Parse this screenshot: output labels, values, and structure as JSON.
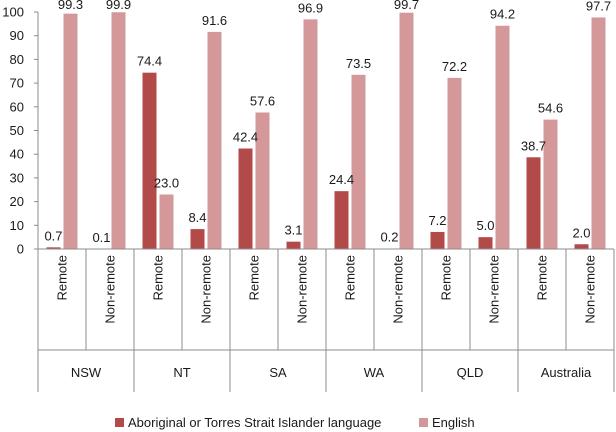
{
  "chart_data": {
    "type": "bar",
    "title": "",
    "xlabel": "",
    "ylabel": "",
    "ylim": [
      0,
      100
    ],
    "yticks": [
      0,
      10,
      20,
      30,
      40,
      50,
      60,
      70,
      80,
      90,
      100
    ],
    "grid": false,
    "legend_position": "bottom",
    "groups": [
      "NSW",
      "NT",
      "SA",
      "WA",
      "QLD",
      "Australia"
    ],
    "subcategories": [
      "Remote",
      "Non-remote"
    ],
    "series": [
      {
        "name": "Aboriginal or Torres Strait Islander language",
        "color": "#b24a4a",
        "values": [
          0.7,
          0.1,
          74.4,
          8.4,
          42.4,
          3.1,
          24.4,
          0.2,
          7.2,
          5.0,
          38.7,
          2.0
        ],
        "labels": [
          "0.7",
          "0.1",
          "74.4",
          "8.4",
          "42.4",
          "3.1",
          "24.4",
          "0.2",
          "7.2",
          "5.0",
          "38.7",
          "2.0"
        ]
      },
      {
        "name": "English",
        "color": "#d4979a",
        "values": [
          99.3,
          99.9,
          23.0,
          91.6,
          57.6,
          96.9,
          73.5,
          99.7,
          72.2,
          94.2,
          54.6,
          97.7
        ],
        "labels": [
          "99.3",
          "99.9",
          "23.0",
          "91.6",
          "57.6",
          "96.9",
          "73.5",
          "99.7",
          "72.2",
          "94.2",
          "54.6",
          "97.7"
        ]
      }
    ]
  }
}
